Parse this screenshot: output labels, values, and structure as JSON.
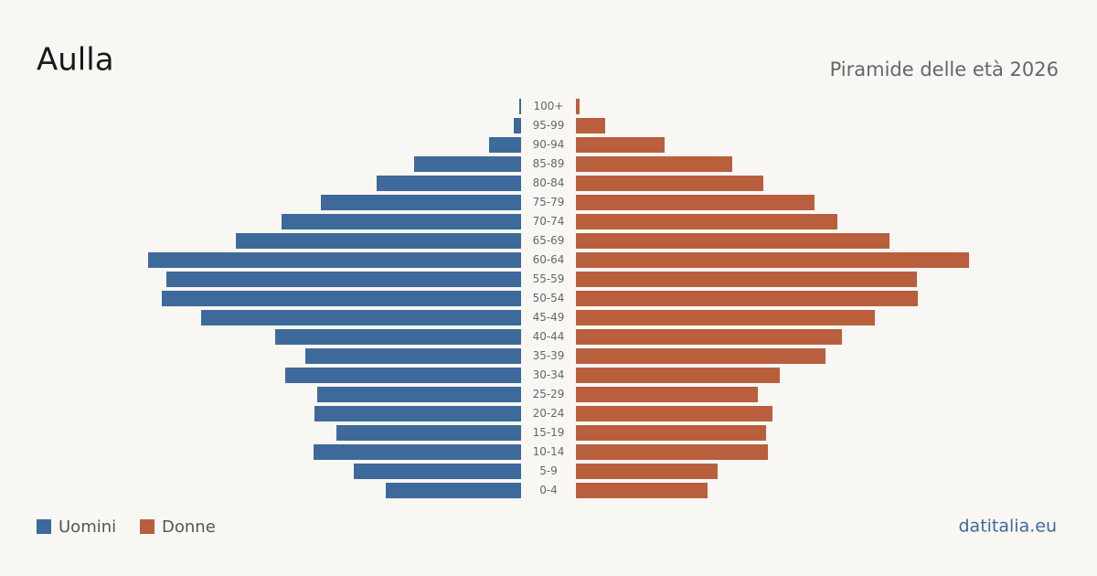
{
  "chart_data": {
    "type": "pyramid",
    "title": "Aulla",
    "subtitle": "Piramide delle età 2026",
    "source": "datitalia.eu",
    "categories": [
      "100+",
      "95-99",
      "90-94",
      "85-89",
      "80-84",
      "75-79",
      "70-74",
      "65-69",
      "60-64",
      "55-59",
      "50-54",
      "45-49",
      "40-44",
      "35-39",
      "30-34",
      "25-29",
      "20-24",
      "15-19",
      "10-14",
      "5-9",
      "0-4"
    ],
    "series": [
      {
        "name": "Uomini",
        "color": "#3d6a9a",
        "values": [
          2,
          8,
          35,
          117,
          158,
          219,
          262,
          312,
          408,
          388,
          393,
          350,
          269,
          236,
          258,
          223,
          226,
          202,
          227,
          183,
          148
        ]
      },
      {
        "name": "Donne",
        "color": "#b95f3e",
        "values": [
          4,
          32,
          97,
          171,
          205,
          261,
          286,
          343,
          430,
          373,
          374,
          327,
          291,
          273,
          223,
          199,
          215,
          208,
          210,
          155,
          144
        ]
      }
    ]
  }
}
